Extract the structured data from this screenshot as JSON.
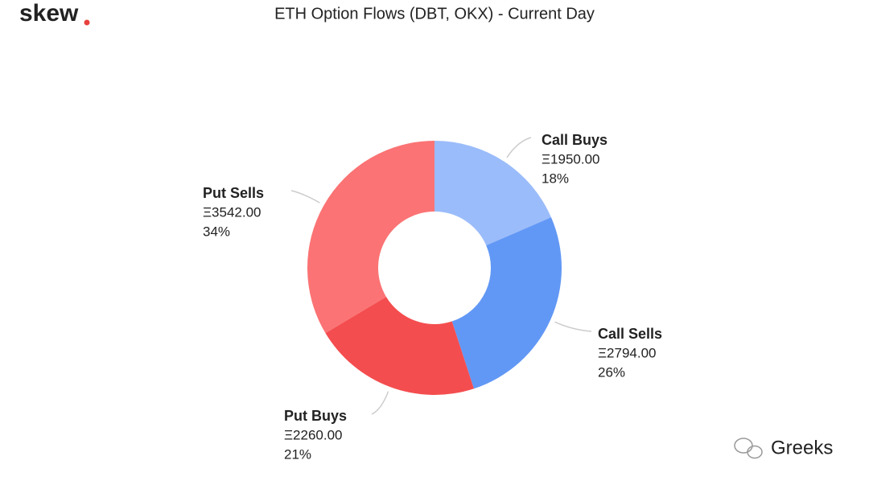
{
  "chart_data": {
    "type": "donut",
    "title": "ETH Option Flows (DBT, OKX) - Current Day",
    "logo": "skew",
    "watermark": "Greeks",
    "categories": [
      "Call Buys",
      "Call Sells",
      "Put Buys",
      "Put Sells"
    ],
    "values": [
      1950,
      2794,
      2260,
      3542
    ],
    "value_labels": [
      "Ξ1950.00",
      "Ξ2794.00",
      "Ξ2260.00",
      "Ξ3542.00"
    ],
    "percent_labels": [
      "18%",
      "26%",
      "21%",
      "34%"
    ],
    "colors": [
      "#9bbcfa",
      "#6298f5",
      "#f44d4f",
      "#fb7374"
    ]
  }
}
